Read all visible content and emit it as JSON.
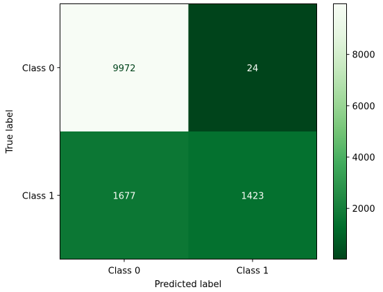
{
  "chart_data": {
    "type": "heatmap",
    "title": "",
    "xlabel": "Predicted label",
    "ylabel": "True label",
    "x_categories": [
      "Class 0",
      "Class 1"
    ],
    "y_categories": [
      "Class 0",
      "Class 1"
    ],
    "values": [
      [
        9972,
        24
      ],
      [
        1677,
        1423
      ]
    ],
    "colormap": "Greens",
    "colormap_colors": {
      "low": "#00441b",
      "mid": "#41ab5d",
      "high": "#f7fcf5"
    },
    "colorbar": {
      "range": [
        24,
        9972
      ],
      "ticks": [
        2000,
        4000,
        6000,
        8000
      ],
      "tick_labels": [
        "2000",
        "4000",
        "6000",
        "8000"
      ]
    },
    "grid": false
  }
}
